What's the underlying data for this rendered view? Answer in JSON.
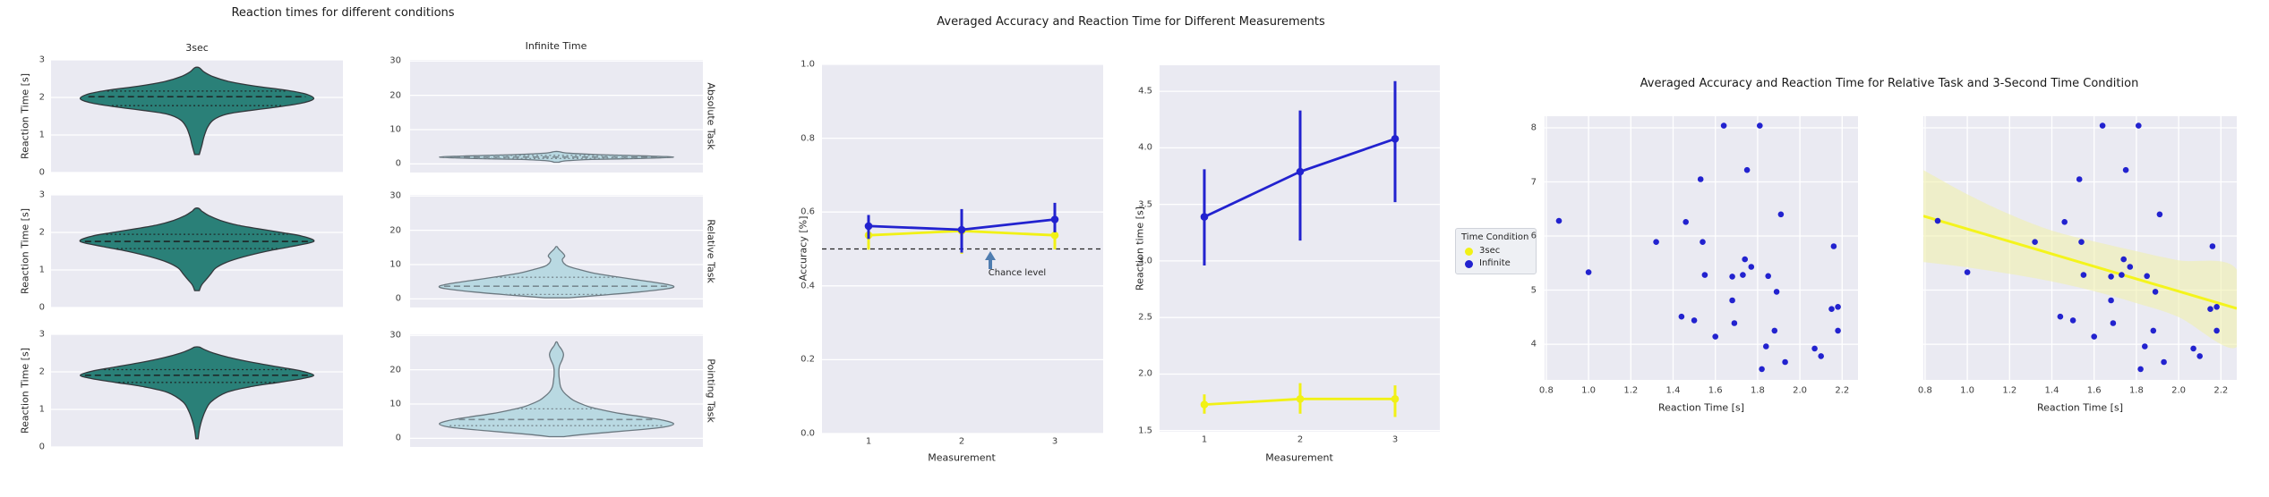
{
  "figure": {
    "background": "#ffffff",
    "panel_background": "#eaeaf2",
    "grid_color": "#ffffff",
    "text_color": "#262626"
  },
  "colors": {
    "teal_violin_fill": "#2a8078",
    "teal_violin_edge": "#32373b",
    "teal_inner_lines": "#1e2a2a",
    "lightblue_violin_fill": "#b9d9e2",
    "lightblue_violin_edge": "#6b7880",
    "lightblue_inner_lines": "#7a8a92",
    "blue_series": "#2222cf",
    "yellow_series": "#f1f116",
    "regression_line": "#f4f41c",
    "regression_band": "#f0f0a8",
    "annotation_arrow": "#4f7db0",
    "chance_line": "#222222"
  },
  "violin_section": {
    "title": "Reaction times for different conditions",
    "column_titles": [
      "3sec",
      "Infinite Time"
    ],
    "row_labels": [
      "Absolute Task",
      "Relative Task",
      "Pointing Task"
    ],
    "ylabel": "Reaction Time [s]"
  },
  "measurement_section": {
    "title": "Averaged Accuracy and Reaction Time for Different Measurements",
    "accuracy": {
      "ylabel": "Accuracy [%]",
      "xlabel": "Measurement",
      "annotation": "Chance level"
    },
    "reaction_time": {
      "ylabel": "Reaction time [s]",
      "xlabel": "Measurement"
    },
    "legend": {
      "title": "Time Condition",
      "items": [
        {
          "label": "3sec",
          "color": "#f1f116"
        },
        {
          "label": "Infinite",
          "color": "#2222cf"
        }
      ]
    }
  },
  "relative_section": {
    "title": "Averaged Accuracy and Reaction Time for Relative Task and 3-Second Time Condition",
    "xlabel": "Reaction Time [s]"
  },
  "chart_data": [
    {
      "id": "violin_grid",
      "type": "violin",
      "title": "Reaction times for different conditions",
      "columns": [
        "3sec",
        "Infinite Time"
      ],
      "rows": [
        "Absolute Task",
        "Relative Task",
        "Pointing Task"
      ],
      "ylabel": "Reaction Time [s]",
      "col_ylim": [
        [
          0,
          3
        ],
        [
          -2.5,
          30.3
        ]
      ],
      "col_yticks": [
        [
          0,
          1,
          2,
          3
        ],
        [
          0,
          10,
          20,
          30
        ]
      ],
      "violins": [
        {
          "task": "Absolute Task",
          "condition": "3sec",
          "row": 0,
          "col": 0,
          "fill": "teal",
          "median": 2.02,
          "q1": 1.78,
          "q3": 2.17,
          "profile": [
            [
              0.48,
              0.02
            ],
            [
              0.7,
              0.04
            ],
            [
              0.95,
              0.06
            ],
            [
              1.2,
              0.09
            ],
            [
              1.4,
              0.14
            ],
            [
              1.55,
              0.25
            ],
            [
              1.65,
              0.45
            ],
            [
              1.75,
              0.7
            ],
            [
              1.85,
              0.9
            ],
            [
              1.97,
              1.0
            ],
            [
              2.1,
              0.92
            ],
            [
              2.2,
              0.75
            ],
            [
              2.3,
              0.5
            ],
            [
              2.42,
              0.28
            ],
            [
              2.55,
              0.14
            ],
            [
              2.68,
              0.06
            ],
            [
              2.79,
              0.02
            ]
          ]
        },
        {
          "task": "Relative Task",
          "condition": "3sec",
          "row": 1,
          "col": 0,
          "fill": "teal",
          "median": 1.76,
          "q1": 1.57,
          "q3": 1.95,
          "profile": [
            [
              0.45,
              0.02
            ],
            [
              0.6,
              0.04
            ],
            [
              0.75,
              0.08
            ],
            [
              0.9,
              0.12
            ],
            [
              1.05,
              0.16
            ],
            [
              1.2,
              0.25
            ],
            [
              1.35,
              0.4
            ],
            [
              1.5,
              0.6
            ],
            [
              1.62,
              0.8
            ],
            [
              1.76,
              1.0
            ],
            [
              1.9,
              0.9
            ],
            [
              2.0,
              0.72
            ],
            [
              2.1,
              0.52
            ],
            [
              2.2,
              0.34
            ],
            [
              2.32,
              0.2
            ],
            [
              2.45,
              0.1
            ],
            [
              2.57,
              0.04
            ],
            [
              2.64,
              0.015
            ]
          ]
        },
        {
          "task": "Pointing Task",
          "condition": "3sec",
          "row": 2,
          "col": 0,
          "fill": "teal",
          "median": 1.91,
          "q1": 1.72,
          "q3": 2.06,
          "profile": [
            [
              0.22,
              0.01
            ],
            [
              0.45,
              0.02
            ],
            [
              0.7,
              0.04
            ],
            [
              0.95,
              0.07
            ],
            [
              1.2,
              0.12
            ],
            [
              1.45,
              0.25
            ],
            [
              1.6,
              0.45
            ],
            [
              1.72,
              0.7
            ],
            [
              1.82,
              0.9
            ],
            [
              1.91,
              1.0
            ],
            [
              2.02,
              0.9
            ],
            [
              2.12,
              0.72
            ],
            [
              2.25,
              0.48
            ],
            [
              2.38,
              0.28
            ],
            [
              2.5,
              0.14
            ],
            [
              2.6,
              0.06
            ],
            [
              2.66,
              0.02
            ]
          ]
        },
        {
          "task": "Absolute Task",
          "condition": "Infinite Time",
          "row": 0,
          "col": 1,
          "fill": "lightblue",
          "median": 2.0,
          "q1": 1.6,
          "q3": 2.5,
          "profile": [
            [
              0.5,
              0.02
            ],
            [
              0.9,
              0.08
            ],
            [
              1.3,
              0.3
            ],
            [
              1.6,
              0.7
            ],
            [
              2.0,
              1.0
            ],
            [
              2.4,
              0.7
            ],
            [
              2.8,
              0.3
            ],
            [
              3.2,
              0.08
            ],
            [
              3.6,
              0.02
            ]
          ]
        },
        {
          "task": "Relative Task",
          "condition": "Infinite Time",
          "row": 1,
          "col": 1,
          "fill": "lightblue",
          "median": 3.7,
          "q1": 1.3,
          "q3": 6.3,
          "profile": [
            [
              0.3,
              0.1
            ],
            [
              1.0,
              0.35
            ],
            [
              2.0,
              0.7
            ],
            [
              3.0,
              0.95
            ],
            [
              3.7,
              1.0
            ],
            [
              4.5,
              0.9
            ],
            [
              5.5,
              0.7
            ],
            [
              6.5,
              0.5
            ],
            [
              7.5,
              0.32
            ],
            [
              8.5,
              0.2
            ],
            [
              9.5,
              0.1
            ],
            [
              10.5,
              0.06
            ],
            [
              11.5,
              0.05
            ],
            [
              12.5,
              0.07
            ],
            [
              13.5,
              0.05
            ],
            [
              14.5,
              0.02
            ],
            [
              15.2,
              0.005
            ]
          ]
        },
        {
          "task": "Pointing Task",
          "condition": "Infinite Time",
          "row": 2,
          "col": 1,
          "fill": "lightblue",
          "median": 5.5,
          "q1": 3.7,
          "q3": 8.6,
          "profile": [
            [
              0.5,
              0.06
            ],
            [
              1.2,
              0.25
            ],
            [
              2.2,
              0.6
            ],
            [
              3.2,
              0.9
            ],
            [
              4.2,
              1.0
            ],
            [
              5.2,
              0.92
            ],
            [
              6.2,
              0.75
            ],
            [
              7.2,
              0.55
            ],
            [
              8.2,
              0.4
            ],
            [
              9.2,
              0.28
            ],
            [
              10.2,
              0.2
            ],
            [
              11.2,
              0.14
            ],
            [
              12.2,
              0.1
            ],
            [
              13.5,
              0.06
            ],
            [
              15.0,
              0.035
            ],
            [
              17.0,
              0.025
            ],
            [
              19.0,
              0.02
            ],
            [
              21.0,
              0.025
            ],
            [
              23.0,
              0.05
            ],
            [
              24.5,
              0.06
            ],
            [
              25.8,
              0.045
            ],
            [
              27.0,
              0.02
            ],
            [
              28.0,
              0.005
            ]
          ]
        }
      ]
    },
    {
      "id": "accuracy",
      "type": "line",
      "xlabel": "Measurement",
      "ylabel": "Accuracy [%]",
      "x": [
        1,
        2,
        3
      ],
      "ylim": [
        0,
        1
      ],
      "yticks": [
        0.0,
        0.2,
        0.4,
        0.6,
        0.8,
        1.0
      ],
      "chance_level": 0.5,
      "annotation": "Chance level",
      "series": [
        {
          "name": "3sec",
          "color": "#f1f116",
          "values": [
            0.537,
            0.549,
            0.537
          ],
          "err_low": [
            0.498,
            0.487,
            0.499
          ],
          "err_high": [
            0.565,
            0.605,
            0.568
          ]
        },
        {
          "name": "Infinite",
          "color": "#2222cf",
          "values": [
            0.562,
            0.552,
            0.58
          ],
          "err_low": [
            0.527,
            0.49,
            0.545
          ],
          "err_high": [
            0.592,
            0.608,
            0.625
          ]
        }
      ]
    },
    {
      "id": "reaction_time",
      "type": "line",
      "xlabel": "Measurement",
      "ylabel": "Reaction time [s]",
      "x": [
        1,
        2,
        3
      ],
      "ylim": [
        1.49,
        4.73
      ],
      "yticks": [
        1.5,
        2.0,
        2.5,
        3.0,
        3.5,
        4.0,
        4.5
      ],
      "series": [
        {
          "name": "3sec",
          "color": "#f1f116",
          "values": [
            1.73,
            1.78,
            1.78
          ],
          "err_low": [
            1.65,
            1.65,
            1.62
          ],
          "err_high": [
            1.82,
            1.92,
            1.9
          ]
        },
        {
          "name": "Infinite",
          "color": "#2222cf",
          "values": [
            3.39,
            3.79,
            4.08
          ],
          "err_low": [
            2.96,
            3.18,
            3.52
          ],
          "err_high": [
            3.81,
            4.33,
            4.59
          ]
        }
      ]
    },
    {
      "id": "scatter",
      "type": "scatter",
      "xlabel": "Reaction Time [s]",
      "xlim": [
        0.792,
        2.275
      ],
      "ylim": [
        3.34,
        8.215
      ],
      "xticks": [
        0.8,
        1.0,
        1.2,
        1.4,
        1.6,
        1.8,
        2.0,
        2.2
      ],
      "yticks": [
        4,
        5,
        6,
        7,
        8
      ],
      "point_color": "#2222cf",
      "points": [
        [
          0.86,
          6.28
        ],
        [
          1.0,
          5.33
        ],
        [
          1.32,
          5.89
        ],
        [
          1.44,
          4.51
        ],
        [
          1.46,
          6.26
        ],
        [
          1.5,
          4.44
        ],
        [
          1.53,
          7.05
        ],
        [
          1.54,
          5.89
        ],
        [
          1.55,
          5.28
        ],
        [
          1.6,
          4.14
        ],
        [
          1.64,
          8.04
        ],
        [
          1.68,
          5.25
        ],
        [
          1.68,
          4.81
        ],
        [
          1.69,
          4.39
        ],
        [
          1.73,
          5.28
        ],
        [
          1.74,
          5.57
        ],
        [
          1.75,
          7.22
        ],
        [
          1.77,
          5.43
        ],
        [
          1.81,
          8.04
        ],
        [
          1.82,
          3.54
        ],
        [
          1.85,
          5.26
        ],
        [
          1.84,
          3.96
        ],
        [
          1.88,
          4.25
        ],
        [
          1.89,
          4.97
        ],
        [
          1.91,
          6.4
        ],
        [
          1.93,
          3.67
        ],
        [
          2.07,
          3.92
        ],
        [
          2.1,
          3.78
        ],
        [
          2.15,
          4.65
        ],
        [
          2.18,
          4.69
        ],
        [
          2.16,
          5.81
        ],
        [
          2.18,
          4.25
        ]
      ]
    },
    {
      "id": "scatter_regression",
      "type": "scatter",
      "xlabel": "Reaction Time [s]",
      "xlim": [
        0.792,
        2.275
      ],
      "ylim": [
        3.34,
        8.215
      ],
      "xticks": [
        0.8,
        1.0,
        1.2,
        1.4,
        1.6,
        1.8,
        2.0,
        2.2
      ],
      "yticks": [
        4,
        5,
        6,
        7,
        8
      ],
      "yticklabels_hidden": true,
      "point_color": "#2222cf",
      "points": [
        [
          0.86,
          6.28
        ],
        [
          1.0,
          5.33
        ],
        [
          1.32,
          5.89
        ],
        [
          1.44,
          4.51
        ],
        [
          1.46,
          6.26
        ],
        [
          1.5,
          4.44
        ],
        [
          1.53,
          7.05
        ],
        [
          1.54,
          5.89
        ],
        [
          1.55,
          5.28
        ],
        [
          1.6,
          4.14
        ],
        [
          1.64,
          8.04
        ],
        [
          1.68,
          5.25
        ],
        [
          1.68,
          4.81
        ],
        [
          1.69,
          4.39
        ],
        [
          1.73,
          5.28
        ],
        [
          1.74,
          5.57
        ],
        [
          1.75,
          7.22
        ],
        [
          1.77,
          5.43
        ],
        [
          1.81,
          8.04
        ],
        [
          1.82,
          3.54
        ],
        [
          1.85,
          5.26
        ],
        [
          1.84,
          3.96
        ],
        [
          1.88,
          4.25
        ],
        [
          1.89,
          4.97
        ],
        [
          1.91,
          6.4
        ],
        [
          1.93,
          3.67
        ],
        [
          2.07,
          3.92
        ],
        [
          2.1,
          3.78
        ],
        [
          2.15,
          4.65
        ],
        [
          2.18,
          4.69
        ],
        [
          2.16,
          5.81
        ],
        [
          2.18,
          4.25
        ]
      ],
      "regression": {
        "x": [
          0.792,
          2.275
        ],
        "y": [
          6.37,
          4.66
        ],
        "color": "#f4f41c",
        "band_color": "#f0f0a8",
        "band_top": [
          [
            0.792,
            7.22
          ],
          [
            1.0,
            6.77
          ],
          [
            1.2,
            6.4
          ],
          [
            1.4,
            6.1
          ],
          [
            1.6,
            5.9
          ],
          [
            1.8,
            5.72
          ],
          [
            2.0,
            5.55
          ],
          [
            2.275,
            5.38
          ]
        ],
        "band_bottom": [
          [
            0.792,
            5.52
          ],
          [
            1.0,
            5.42
          ],
          [
            1.2,
            5.3
          ],
          [
            1.4,
            5.16
          ],
          [
            1.6,
            4.98
          ],
          [
            1.8,
            4.76
          ],
          [
            2.0,
            4.5
          ],
          [
            2.275,
            3.95
          ]
        ]
      }
    }
  ]
}
